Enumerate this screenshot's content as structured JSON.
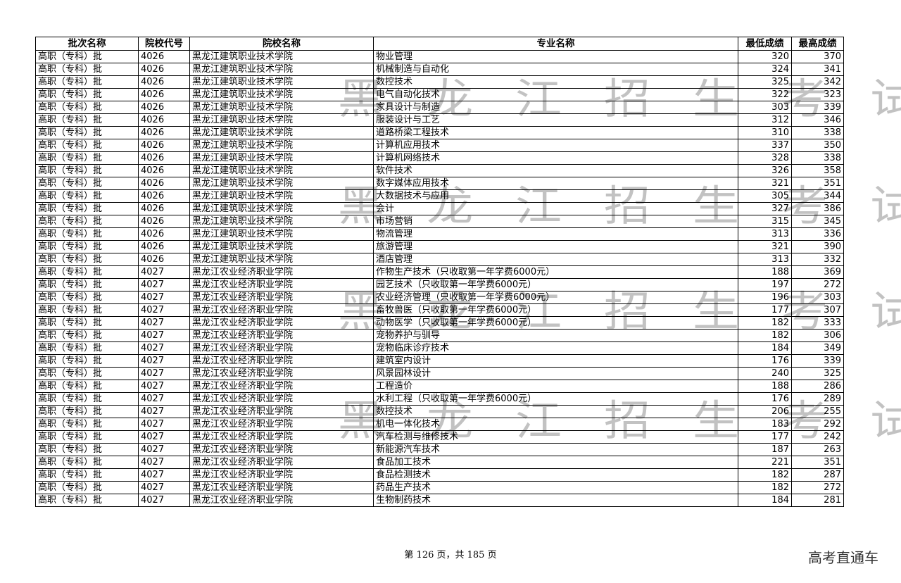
{
  "table": {
    "headers": [
      "批次名称",
      "院校代号",
      "院校名称",
      "专业名称",
      "最低成绩",
      "最高成绩"
    ],
    "rows": [
      [
        "高职（专科）批",
        "4026",
        "黑龙江建筑职业技术学院",
        "物业管理",
        "320",
        "370"
      ],
      [
        "高职（专科）批",
        "4026",
        "黑龙江建筑职业技术学院",
        "机械制造与自动化",
        "324",
        "341"
      ],
      [
        "高职（专科）批",
        "4026",
        "黑龙江建筑职业技术学院",
        "数控技术",
        "325",
        "342"
      ],
      [
        "高职（专科）批",
        "4026",
        "黑龙江建筑职业技术学院",
        "电气自动化技术",
        "322",
        "323"
      ],
      [
        "高职（专科）批",
        "4026",
        "黑龙江建筑职业技术学院",
        "家具设计与制造",
        "303",
        "339"
      ],
      [
        "高职（专科）批",
        "4026",
        "黑龙江建筑职业技术学院",
        "服装设计与工艺",
        "312",
        "346"
      ],
      [
        "高职（专科）批",
        "4026",
        "黑龙江建筑职业技术学院",
        "道路桥梁工程技术",
        "310",
        "338"
      ],
      [
        "高职（专科）批",
        "4026",
        "黑龙江建筑职业技术学院",
        "计算机应用技术",
        "337",
        "350"
      ],
      [
        "高职（专科）批",
        "4026",
        "黑龙江建筑职业技术学院",
        "计算机网络技术",
        "328",
        "338"
      ],
      [
        "高职（专科）批",
        "4026",
        "黑龙江建筑职业技术学院",
        "软件技术",
        "326",
        "358"
      ],
      [
        "高职（专科）批",
        "4026",
        "黑龙江建筑职业技术学院",
        "数字媒体应用技术",
        "321",
        "351"
      ],
      [
        "高职（专科）批",
        "4026",
        "黑龙江建筑职业技术学院",
        "大数据技术与应用",
        "305",
        "344"
      ],
      [
        "高职（专科）批",
        "4026",
        "黑龙江建筑职业技术学院",
        "会计",
        "327",
        "386"
      ],
      [
        "高职（专科）批",
        "4026",
        "黑龙江建筑职业技术学院",
        "市场营销",
        "315",
        "345"
      ],
      [
        "高职（专科）批",
        "4026",
        "黑龙江建筑职业技术学院",
        "物流管理",
        "313",
        "336"
      ],
      [
        "高职（专科）批",
        "4026",
        "黑龙江建筑职业技术学院",
        "旅游管理",
        "321",
        "390"
      ],
      [
        "高职（专科）批",
        "4026",
        "黑龙江建筑职业技术学院",
        "酒店管理",
        "313",
        "332"
      ],
      [
        "高职（专科）批",
        "4027",
        "黑龙江农业经济职业学院",
        "作物生产技术（只收取第一年学费6000元）",
        "188",
        "369"
      ],
      [
        "高职（专科）批",
        "4027",
        "黑龙江农业经济职业学院",
        "园艺技术（只收取第一年学费6000元）",
        "197",
        "272"
      ],
      [
        "高职（专科）批",
        "4027",
        "黑龙江农业经济职业学院",
        "农业经济管理（只收取第一年学费6000元）",
        "196",
        "303"
      ],
      [
        "高职（专科）批",
        "4027",
        "黑龙江农业经济职业学院",
        "畜牧兽医（只收取第一年学费6000元）",
        "177",
        "307"
      ],
      [
        "高职（专科）批",
        "4027",
        "黑龙江农业经济职业学院",
        "动物医学（只收取第一年学费6000元）",
        "182",
        "333"
      ],
      [
        "高职（专科）批",
        "4027",
        "黑龙江农业经济职业学院",
        "宠物养护与驯导",
        "182",
        "306"
      ],
      [
        "高职（专科）批",
        "4027",
        "黑龙江农业经济职业学院",
        "宠物临床诊疗技术",
        "184",
        "349"
      ],
      [
        "高职（专科）批",
        "4027",
        "黑龙江农业经济职业学院",
        "建筑室内设计",
        "176",
        "339"
      ],
      [
        "高职（专科）批",
        "4027",
        "黑龙江农业经济职业学院",
        "风景园林设计",
        "240",
        "325"
      ],
      [
        "高职（专科）批",
        "4027",
        "黑龙江农业经济职业学院",
        "工程造价",
        "188",
        "286"
      ],
      [
        "高职（专科）批",
        "4027",
        "黑龙江农业经济职业学院",
        "水利工程（只收取第一年学费6000元）",
        "176",
        "289"
      ],
      [
        "高职（专科）批",
        "4027",
        "黑龙江农业经济职业学院",
        "数控技术",
        "206",
        "255"
      ],
      [
        "高职（专科）批",
        "4027",
        "黑龙江农业经济职业学院",
        "机电一体化技术",
        "183",
        "292"
      ],
      [
        "高职（专科）批",
        "4027",
        "黑龙江农业经济职业学院",
        "汽车检测与维修技术",
        "177",
        "242"
      ],
      [
        "高职（专科）批",
        "4027",
        "黑龙江农业经济职业学院",
        "新能源汽车技术",
        "187",
        "263"
      ],
      [
        "高职（专科）批",
        "4027",
        "黑龙江农业经济职业学院",
        "食品加工技术",
        "221",
        "351"
      ],
      [
        "高职（专科）批",
        "4027",
        "黑龙江农业经济职业学院",
        "食品检测技术",
        "182",
        "287"
      ],
      [
        "高职（专科）批",
        "4027",
        "黑龙江农业经济职业学院",
        "药品生产技术",
        "182",
        "272"
      ],
      [
        "高职（专科）批",
        "4027",
        "黑龙江农业经济职业学院",
        "生物制药技术",
        "184",
        "281"
      ]
    ]
  },
  "watermark": "黑龙江招生考试院",
  "footer": {
    "page_text": "第 126 页，共 185 页"
  },
  "brand": "高考直通车"
}
